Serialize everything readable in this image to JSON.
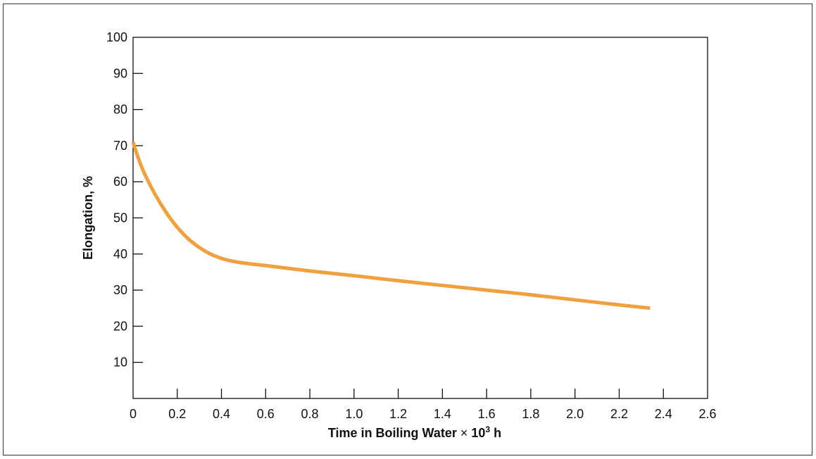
{
  "chart_data": {
    "type": "line",
    "xlabel_main": "Time in Boiling Water ",
    "xlabel_times": "×",
    "xlabel_base": " 10",
    "xlabel_exp": "3",
    "xlabel_unit": " h",
    "ylabel": "Elongation, %",
    "xlim": [
      0,
      2.6
    ],
    "ylim": [
      0,
      100
    ],
    "x_ticks": [
      0,
      0.2,
      0.4,
      0.6,
      0.8,
      1.0,
      1.2,
      1.4,
      1.6,
      1.8,
      2.0,
      2.2,
      2.4,
      2.6
    ],
    "x_tick_labels": [
      "0",
      "0.2",
      "0.4",
      "0.6",
      "0.8",
      "1.0",
      "1.2",
      "1.4",
      "1.6",
      "1.8",
      "2.0",
      "2.2",
      "2.4",
      "2.6"
    ],
    "y_ticks": [
      10,
      20,
      30,
      40,
      50,
      60,
      70,
      80,
      90,
      100
    ],
    "y_tick_labels": [
      "10",
      "20",
      "30",
      "40",
      "50",
      "60",
      "70",
      "80",
      "90",
      "100"
    ],
    "grid": false,
    "line_color": "#f0a03c",
    "series": [
      {
        "x": [
          0,
          0.02,
          0.05,
          0.1,
          0.15,
          0.2,
          0.25,
          0.3,
          0.35,
          0.4,
          0.45,
          0.5,
          0.6,
          0.8,
          1.0,
          1.2,
          1.4,
          1.6,
          1.8,
          2.0,
          2.2,
          2.34
        ],
        "y": [
          71,
          67.2,
          62.5,
          56.5,
          51.5,
          47.4,
          44.2,
          41.8,
          40.0,
          38.8,
          38.0,
          37.5,
          36.8,
          35.3,
          34.0,
          32.6,
          31.3,
          30.0,
          28.7,
          27.3,
          25.9,
          25.0
        ]
      }
    ]
  }
}
